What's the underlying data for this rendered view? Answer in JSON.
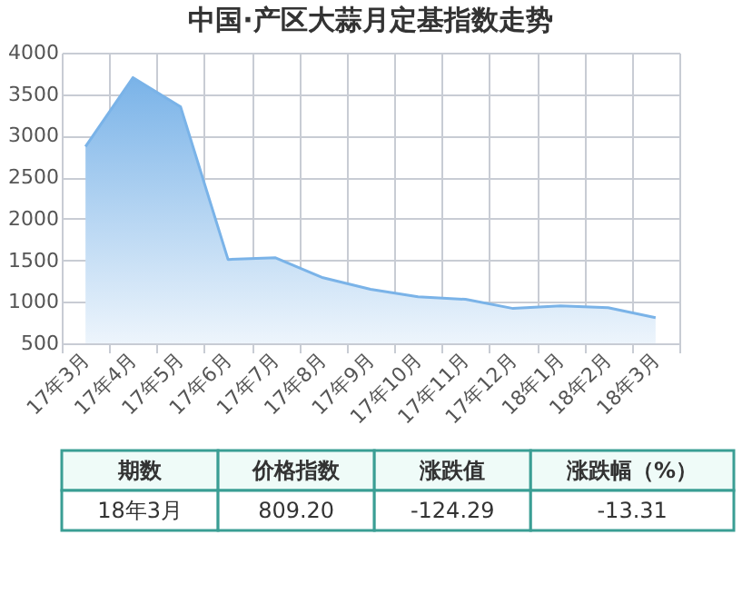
{
  "chart_data": {
    "type": "area",
    "title": "中国·产区大蒜月定基指数走势",
    "categories": [
      "17年3月",
      "17年4月",
      "17年5月",
      "17年6月",
      "17年7月",
      "17年8月",
      "17年9月",
      "17年10月",
      "17年11月",
      "17年12月",
      "18年1月",
      "18年2月",
      "18年3月"
    ],
    "series": [
      {
        "color": "#7ab3e8",
        "values": [
          2870,
          3700,
          3350,
          1510,
          1530,
          1290,
          1150,
          1060,
          1030,
          920,
          950,
          930,
          809.2
        ]
      }
    ],
    "ylim": [
      500,
      4000
    ],
    "yticks": [
      500,
      1000,
      1500,
      2000,
      2500,
      3000,
      3500,
      4000
    ],
    "grid": true,
    "annotations": [
      "期数",
      "价格指数",
      "涨跌值",
      "涨跌幅（%）",
      "18年3月",
      "809.20",
      "-124.29",
      "-13.31"
    ]
  }
}
